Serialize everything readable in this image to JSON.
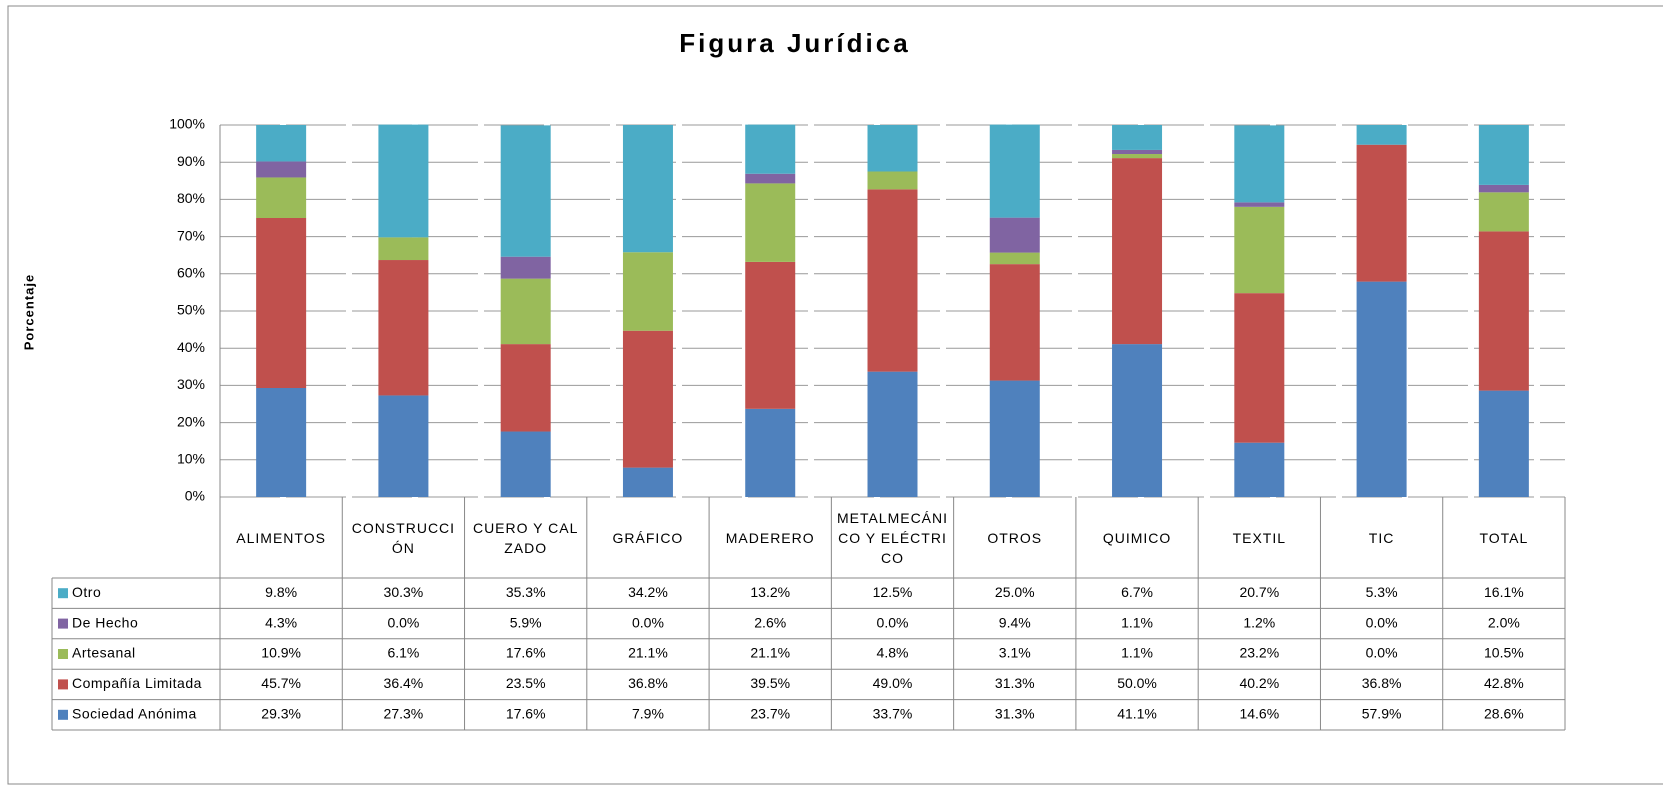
{
  "chart_data": {
    "type": "stacked_bar",
    "title": "Figura Jurídica",
    "ylabel": "Porcentaje",
    "categories": [
      "ALIMENTOS",
      "CONSTRUCCIÓN",
      "CUERO Y CALZADO",
      "GRÁFICO",
      "MADERERO",
      "METALMECÁNICO Y ELÉCTRICO",
      "OTROS",
      "QUIMICO",
      "TEXTIL",
      "TIC",
      "TOTAL"
    ],
    "series": [
      {
        "name": "Sociedad Anónima",
        "color": "#4f81bd",
        "values": [
          29.3,
          27.3,
          17.6,
          7.9,
          23.7,
          33.7,
          31.3,
          41.1,
          14.6,
          57.9,
          28.6
        ],
        "value_labels": [
          "29.3%",
          "27.3%",
          "17.6%",
          "7.9%",
          "23.7%",
          "33.7%",
          "31.3%",
          "41.1%",
          "14.6%",
          "57.9%",
          "28.6%"
        ]
      },
      {
        "name": "Compañía Limitada",
        "color": "#c0504d",
        "values": [
          45.7,
          36.4,
          23.5,
          36.8,
          39.5,
          49.0,
          31.3,
          50.0,
          40.2,
          36.8,
          42.8
        ],
        "value_labels": [
          "45.7%",
          "36.4%",
          "23.5%",
          "36.8%",
          "39.5%",
          "49.0%",
          "31.3%",
          "50.0%",
          "40.2%",
          "36.8%",
          "42.8%"
        ]
      },
      {
        "name": "Artesanal",
        "color": "#9bbb59",
        "values": [
          10.9,
          6.1,
          17.6,
          21.1,
          21.1,
          4.8,
          3.1,
          1.1,
          23.2,
          0.0,
          10.5
        ],
        "value_labels": [
          "10.9%",
          "6.1%",
          "17.6%",
          "21.1%",
          "21.1%",
          "4.8%",
          "3.1%",
          "1.1%",
          "23.2%",
          "0.0%",
          "10.5%"
        ]
      },
      {
        "name": "De Hecho",
        "color": "#8064a2",
        "values": [
          4.3,
          0.0,
          5.9,
          0.0,
          2.6,
          0.0,
          9.4,
          1.1,
          1.2,
          0.0,
          2.0
        ],
        "value_labels": [
          "4.3%",
          "0.0%",
          "5.9%",
          "0.0%",
          "2.6%",
          "0.0%",
          "9.4%",
          "1.1%",
          "1.2%",
          "0.0%",
          "2.0%"
        ]
      },
      {
        "name": "Otro",
        "color": "#4bacc6",
        "values": [
          9.8,
          30.3,
          35.3,
          34.2,
          13.2,
          12.5,
          25.0,
          6.7,
          20.7,
          5.3,
          16.1
        ],
        "value_labels": [
          "9.8%",
          "30.3%",
          "35.3%",
          "34.2%",
          "13.2%",
          "12.5%",
          "25.0%",
          "6.7%",
          "20.7%",
          "5.3%",
          "16.1%"
        ]
      }
    ],
    "ylim": [
      0,
      100
    ],
    "yticks": [
      {
        "value": 0,
        "label": "0%"
      },
      {
        "value": 10,
        "label": "10%"
      },
      {
        "value": 20,
        "label": "20%"
      },
      {
        "value": 30,
        "label": "30%"
      },
      {
        "value": 40,
        "label": "40%"
      },
      {
        "value": 50,
        "label": "50%"
      },
      {
        "value": 60,
        "label": "60%"
      },
      {
        "value": 70,
        "label": "70%"
      },
      {
        "value": 80,
        "label": "80%"
      },
      {
        "value": 90,
        "label": "90%"
      },
      {
        "value": 100,
        "label": "100%"
      }
    ],
    "grid": true
  }
}
